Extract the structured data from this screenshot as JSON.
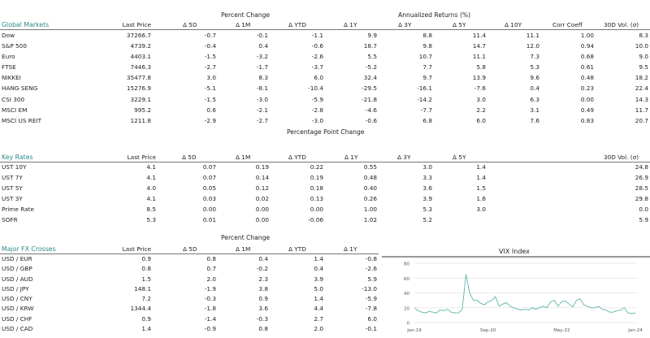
{
  "global_markets": {
    "title": "Global Markets",
    "group_headers": [
      "Percent Change",
      "Annualized Returns (%)"
    ],
    "columns": [
      "Last Price",
      "Δ 5D",
      "Δ 1M",
      "Δ YTD",
      "Δ 1Y",
      "Δ 3Y",
      "Δ 5Y",
      "Δ 10Y",
      "Corr Coeff",
      "30D Vol. (σ)"
    ],
    "rows": [
      [
        "Dow",
        "37266.7",
        "-0.7",
        "-0.1",
        "-1.1",
        "9.9",
        "8.8",
        "11.4",
        "11.1",
        "1.00",
        "8.3"
      ],
      [
        "S&P 500",
        "4739.2",
        "-0.4",
        "0.4",
        "-0.6",
        "18.7",
        "9.8",
        "14.7",
        "12.0",
        "0.94",
        "10.0"
      ],
      [
        "Euro",
        "4403.1",
        "-1.5",
        "-3.2",
        "-2.6",
        "5.5",
        "10.7",
        "11.1",
        "7.3",
        "0.68",
        "9.0"
      ],
      [
        "FTSE",
        "7446.3",
        "-2.7",
        "-1.7",
        "-3.7",
        "-5.2",
        "7.7",
        "5.8",
        "5.3",
        "0.61",
        "9.5"
      ],
      [
        "NIKKEI",
        "35477.8",
        "3.0",
        "8.3",
        "6.0",
        "32.4",
        "9.7",
        "13.9",
        "9.6",
        "0.48",
        "18.2"
      ],
      [
        "HANG SENG",
        "15276.9",
        "-5.1",
        "-8.1",
        "-10.4",
        "-29.5",
        "-16.1",
        "-7.6",
        "0.4",
        "0.23",
        "22.4"
      ],
      [
        "CSI 300",
        "3229.1",
        "-1.5",
        "-3.0",
        "-5.9",
        "-21.8",
        "-14.2",
        "3.0",
        "6.3",
        "0.00",
        "14.3"
      ],
      [
        "MSCI EM",
        "995.2",
        "0.6",
        "-2.1",
        "-2.8",
        "-4.6",
        "-7.7",
        "2.2",
        "3.1",
        "0.49",
        "11.7"
      ],
      [
        "MSCI US REIT",
        "1211.8",
        "-2.9",
        "-2.7",
        "-3.0",
        "-0.6",
        "6.8",
        "6.0",
        "7.6",
        "0.83",
        "20.7"
      ]
    ]
  },
  "key_rates": {
    "title": "Key Rates",
    "group_headers": [
      "Percentage Point Change"
    ],
    "columns": [
      "Last Price",
      "Δ 5D",
      "Δ 1M",
      "Δ YTD",
      "Δ 1Y",
      "Δ 3Y",
      "Δ 5Y",
      "30D Vol. (σ)"
    ],
    "rows": [
      [
        "UST 10Y",
        "4.1",
        "0.07",
        "0.19",
        "0.22",
        "0.55",
        "3.0",
        "1.4",
        "24.8"
      ],
      [
        "UST 7Y",
        "4.1",
        "0.07",
        "0.14",
        "0.19",
        "0.48",
        "3.3",
        "1.4",
        "26.9"
      ],
      [
        "UST 5Y",
        "4.0",
        "0.05",
        "0.12",
        "0.18",
        "0.40",
        "3.6",
        "1.5",
        "28.5"
      ],
      [
        "UST 3Y",
        "4.1",
        "0.03",
        "0.02",
        "0.13",
        "0.26",
        "3.9",
        "1.6",
        "29.8"
      ],
      [
        "Prime Rate",
        "8.5",
        "0.00",
        "0.00",
        "0.00",
        "1.00",
        "5.3",
        "3.0",
        "0.0"
      ],
      [
        "SOFR",
        "5.3",
        "0.01",
        "0.00",
        "-0.06",
        "1.02",
        "5.2",
        "",
        "5.9"
      ]
    ]
  },
  "fx": {
    "title": "Major FX Crosses",
    "group_headers": [
      "Percent Change"
    ],
    "columns": [
      "Last Price",
      "Δ 5D",
      "Δ 1M",
      "Δ YTD",
      "Δ 1Y"
    ],
    "rows": [
      [
        "USD / EUR",
        "0.9",
        "0.8",
        "0.4",
        "1.4",
        "-0.8"
      ],
      [
        "USD / GBP",
        "0.8",
        "0.7",
        "-0.2",
        "0.4",
        "-2.6"
      ],
      [
        "USD / AUD",
        "1.5",
        "2.0",
        "2.3",
        "3.9",
        "5.9"
      ],
      [
        "USD / JPY",
        "148.1",
        "-1.9",
        "3.8",
        "5.0",
        "-13.0"
      ],
      [
        "USD / CNY",
        "7.2",
        "-0.3",
        "0.9",
        "1.4",
        "-5.9"
      ],
      [
        "USD / KRW",
        "1344.4",
        "-1.8",
        "3.6",
        "4.4",
        "-7.8"
      ],
      [
        "USD / CHF",
        "0.9",
        "-1.4",
        "-0.3",
        "2.7",
        "6.0"
      ],
      [
        "USD / CAD",
        "1.4",
        "-0.9",
        "0.8",
        "2.0",
        "-0.1"
      ]
    ]
  },
  "chart_data": {
    "type": "line",
    "title": "VIX Index",
    "x_tick_labels": [
      "Jan-19",
      "Sep-20",
      "May-22",
      "Jan-24"
    ],
    "y_ticks": [
      0,
      20,
      40,
      60,
      80
    ],
    "ylim": [
      0,
      80
    ],
    "grid": true,
    "color": "#5fb3ad",
    "x": [
      "2019-01",
      "2019-02",
      "2019-03",
      "2019-04",
      "2019-05",
      "2019-06",
      "2019-07",
      "2019-08",
      "2019-09",
      "2019-10",
      "2019-11",
      "2019-12",
      "2020-01",
      "2020-02",
      "2020-03",
      "2020-04",
      "2020-05",
      "2020-06",
      "2020-07",
      "2020-08",
      "2020-09",
      "2020-10",
      "2020-11",
      "2020-12",
      "2021-01",
      "2021-02",
      "2021-03",
      "2021-04",
      "2021-05",
      "2021-06",
      "2021-07",
      "2021-08",
      "2021-09",
      "2021-10",
      "2021-11",
      "2021-12",
      "2022-01",
      "2022-02",
      "2022-03",
      "2022-04",
      "2022-05",
      "2022-06",
      "2022-07",
      "2022-08",
      "2022-09",
      "2022-10",
      "2022-11",
      "2022-12",
      "2023-01",
      "2023-02",
      "2023-03",
      "2023-04",
      "2023-05",
      "2023-06",
      "2023-07",
      "2023-08",
      "2023-09",
      "2023-10",
      "2023-11",
      "2023-12",
      "2024-01"
    ],
    "values": [
      20,
      16,
      14,
      13,
      15,
      14,
      13,
      17,
      16,
      18,
      14,
      13,
      13,
      18,
      65,
      40,
      30,
      30,
      26,
      24,
      28,
      30,
      35,
      22,
      25,
      27,
      22,
      20,
      18,
      17,
      18,
      17,
      20,
      18,
      20,
      22,
      20,
      28,
      30,
      22,
      28,
      29,
      25,
      21,
      30,
      32,
      24,
      22,
      20,
      20,
      22,
      18,
      17,
      14,
      14,
      16,
      17,
      20,
      13,
      12,
      13
    ]
  }
}
